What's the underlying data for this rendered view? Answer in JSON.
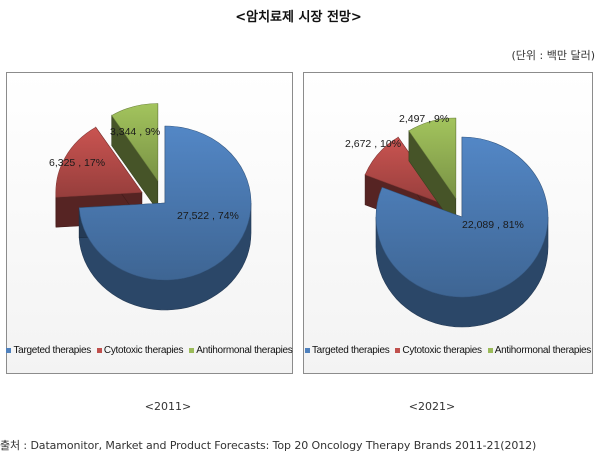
{
  "title": "<암치료제 시장 전망>",
  "unit": "(단위 : 백만 달러)",
  "legend": {
    "items": [
      {
        "label": "Targeted therapies",
        "color": "#4f81bd"
      },
      {
        "label": "Cytotoxic therapies",
        "color": "#c0504d"
      },
      {
        "label": "Antihormonal therapies",
        "color": "#9bbb59"
      }
    ]
  },
  "chart_data": [
    {
      "type": "pie",
      "caption": "<2011>",
      "slices": [
        {
          "name": "Targeted therapies",
          "value": 27522,
          "percent": 74,
          "label": "27,522 , 74%",
          "color": "#4f81bd"
        },
        {
          "name": "Cytotoxic therapies",
          "value": 6325,
          "percent": 17,
          "label": "6,325 , 17%",
          "color": "#c0504d"
        },
        {
          "name": "Antihormonal therapies",
          "value": 3344,
          "percent": 9,
          "label": "3,344 , 9%",
          "color": "#9bbb59"
        }
      ]
    },
    {
      "type": "pie",
      "caption": "<2021>",
      "slices": [
        {
          "name": "Targeted therapies",
          "value": 22089,
          "percent": 81,
          "label": "22,089 , 81%",
          "color": "#4f81bd"
        },
        {
          "name": "Cytotoxic therapies",
          "value": 2672,
          "percent": 10,
          "label": "2,672 , 10%",
          "color": "#c0504d"
        },
        {
          "name": "Antihormonal therapies",
          "value": 2497,
          "percent": 9,
          "label": "2,497 , 9%",
          "color": "#9bbb59"
        }
      ]
    }
  ],
  "source": "출처 : Datamonitor, Market and Product Forecasts: Top 20 Oncology Therapy Brands 2011-21(2012)"
}
